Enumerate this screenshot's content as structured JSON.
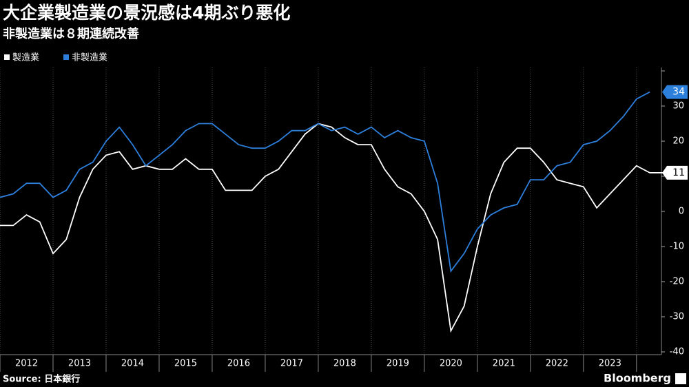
{
  "chart_data": {
    "type": "line",
    "title": "大企業製造業の景況感は4期ぶり悪化",
    "subtitle": "非製造業は８期連続改善",
    "source": "Source: 日本銀行",
    "logo": "Bloomberg",
    "x": [
      2012,
      2012.25,
      2012.5,
      2012.75,
      2013,
      2013.25,
      2013.5,
      2013.75,
      2014,
      2014.25,
      2014.5,
      2014.75,
      2015,
      2015.25,
      2015.5,
      2015.75,
      2016,
      2016.25,
      2016.5,
      2016.75,
      2017,
      2017.25,
      2017.5,
      2017.75,
      2018,
      2018.25,
      2018.5,
      2018.75,
      2019,
      2019.25,
      2019.5,
      2019.75,
      2020,
      2020.25,
      2020.5,
      2020.75,
      2021,
      2021.25,
      2021.5,
      2021.75,
      2022,
      2022.25,
      2022.5,
      2022.75,
      2023,
      2023.25,
      2023.5,
      2023.75,
      2024,
      2024.25,
      2024.5
    ],
    "series": [
      {
        "name": "製造業",
        "color": "#ffffff",
        "values": [
          -4,
          -4,
          -1,
          -3,
          -12,
          -8,
          4,
          12,
          16,
          17,
          12,
          13,
          12,
          12,
          15,
          12,
          12,
          6,
          6,
          6,
          10,
          12,
          17,
          22,
          25,
          24,
          21,
          19,
          19,
          12,
          7,
          5,
          0,
          -8,
          -34,
          -27,
          -10,
          5,
          14,
          18,
          18,
          14,
          9,
          8,
          7,
          1,
          5,
          9,
          13,
          11,
          11
        ],
        "end_label": "11"
      },
      {
        "name": "非製造業",
        "color": "#2d7fdc",
        "values": [
          4,
          5,
          8,
          8,
          4,
          6,
          12,
          14,
          20,
          24,
          19,
          13,
          16,
          19,
          23,
          25,
          25,
          22,
          19,
          18,
          18,
          20,
          23,
          23,
          25,
          23,
          24,
          22,
          24,
          21,
          23,
          21,
          20,
          8,
          -17,
          -12,
          -5,
          -1,
          1,
          2,
          9,
          9,
          13,
          14,
          19,
          20,
          23,
          27,
          32,
          34,
          null
        ],
        "end_label": "34"
      }
    ],
    "year_labels": [
      "2012",
      "2013",
      "2014",
      "2015",
      "2016",
      "2017",
      "2018",
      "2019",
      "2020",
      "2021",
      "2022",
      "2023"
    ],
    "xlim": [
      2012,
      2024.47
    ],
    "xticks": [
      2012,
      2013,
      2014,
      2015,
      2016,
      2017,
      2018,
      2019,
      2020,
      2021,
      2022,
      2023,
      2024
    ],
    "ylim": [
      -40,
      40
    ],
    "yticks": [
      -40,
      -30,
      -20,
      -10,
      0,
      10,
      20,
      30,
      40
    ],
    "grid": true
  }
}
